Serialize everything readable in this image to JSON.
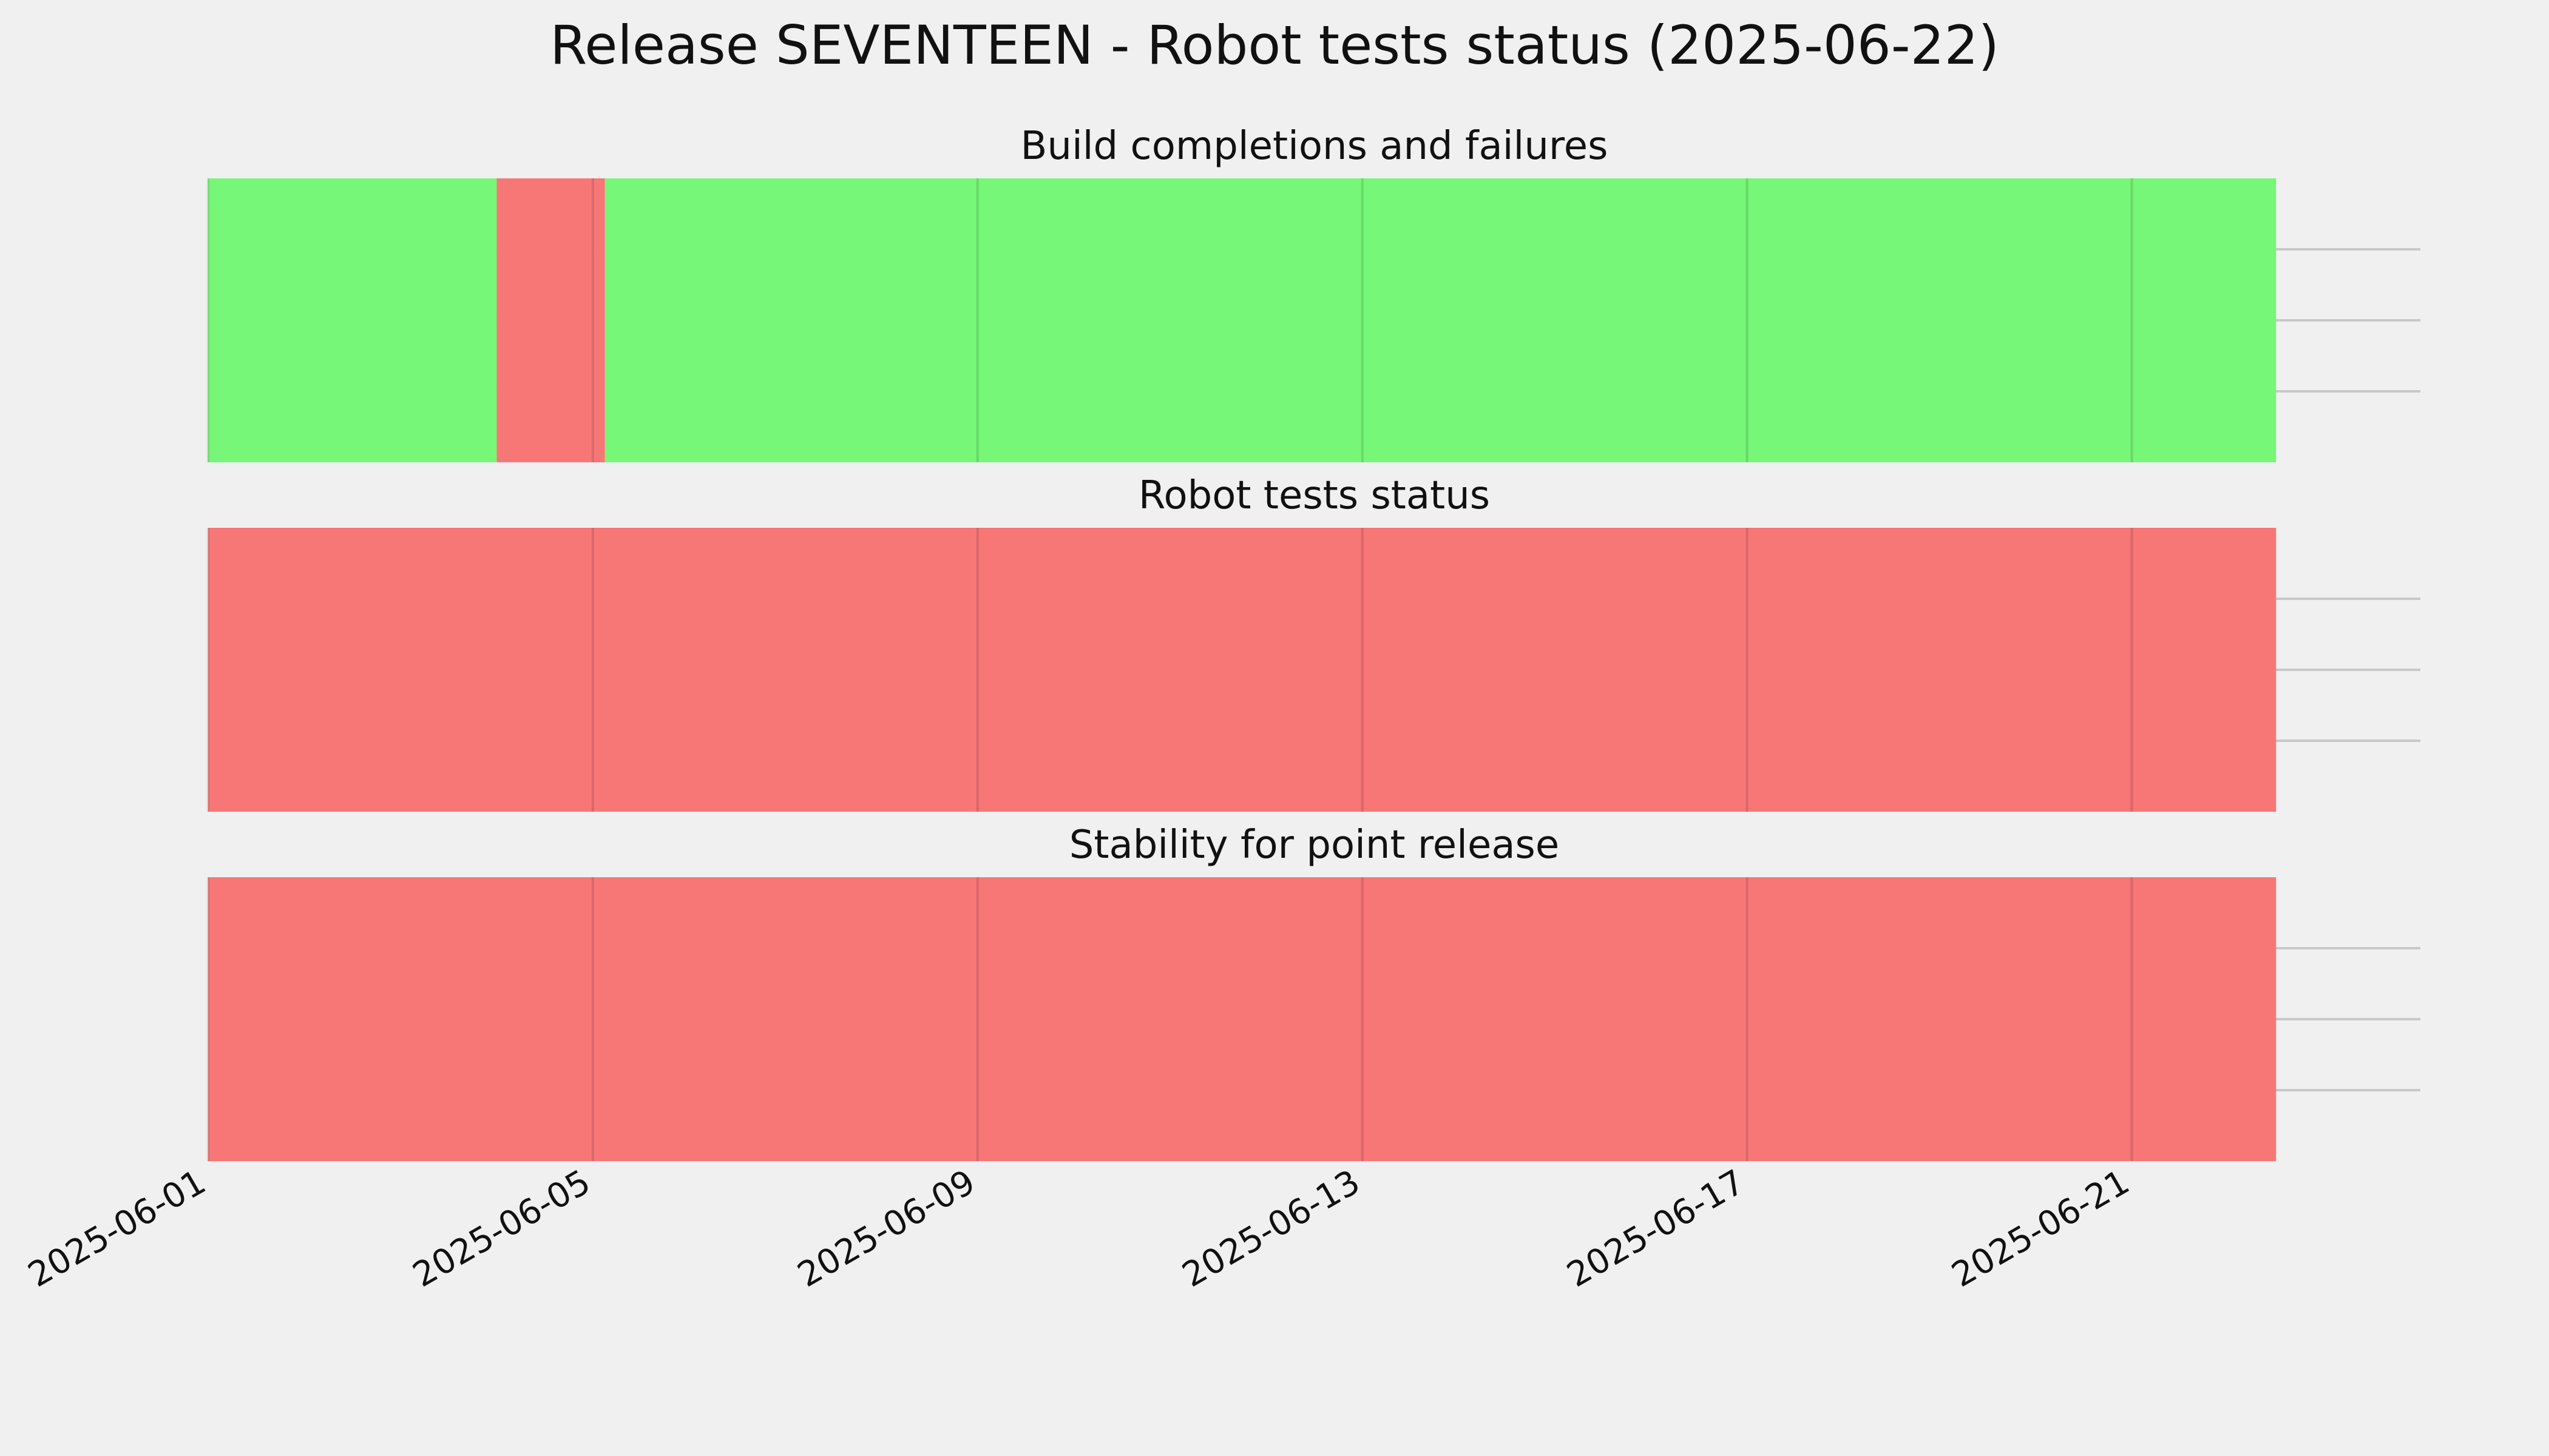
{
  "title": "Release SEVENTEEN - Robot tests status (2025-06-22)",
  "chart_data": {
    "type": "timeline",
    "x_type": "date",
    "xlim": [
      "2025-06-01",
      "2025-06-24"
    ],
    "x_ticks": [
      "2025-06-01",
      "2025-06-05",
      "2025-06-09",
      "2025-06-13",
      "2025-06-17",
      "2025-06-21"
    ],
    "grid": true,
    "colors": {
      "pass": "#77f777",
      "fail": "#f77777"
    },
    "panels": [
      {
        "title": "Build completions and failures",
        "segments": [
          {
            "start": "2025-06-01T00:00",
            "end": "2025-06-04T00:00",
            "status": "pass"
          },
          {
            "start": "2025-06-04T00:00",
            "end": "2025-06-05T00:00",
            "status": "fail"
          },
          {
            "start": "2025-06-05T00:00",
            "end": "2025-06-05T03:00",
            "status": "fail"
          },
          {
            "start": "2025-06-05T03:00",
            "end": "2025-06-22T12:00",
            "status": "pass"
          }
        ]
      },
      {
        "title": "Robot tests status",
        "segments": [
          {
            "start": "2025-06-01T00:00",
            "end": "2025-06-22T12:00",
            "status": "fail"
          }
        ]
      },
      {
        "title": "Stability for point release",
        "segments": [
          {
            "start": "2025-06-01T00:00",
            "end": "2025-06-22T12:00",
            "status": "fail"
          }
        ]
      }
    ]
  }
}
